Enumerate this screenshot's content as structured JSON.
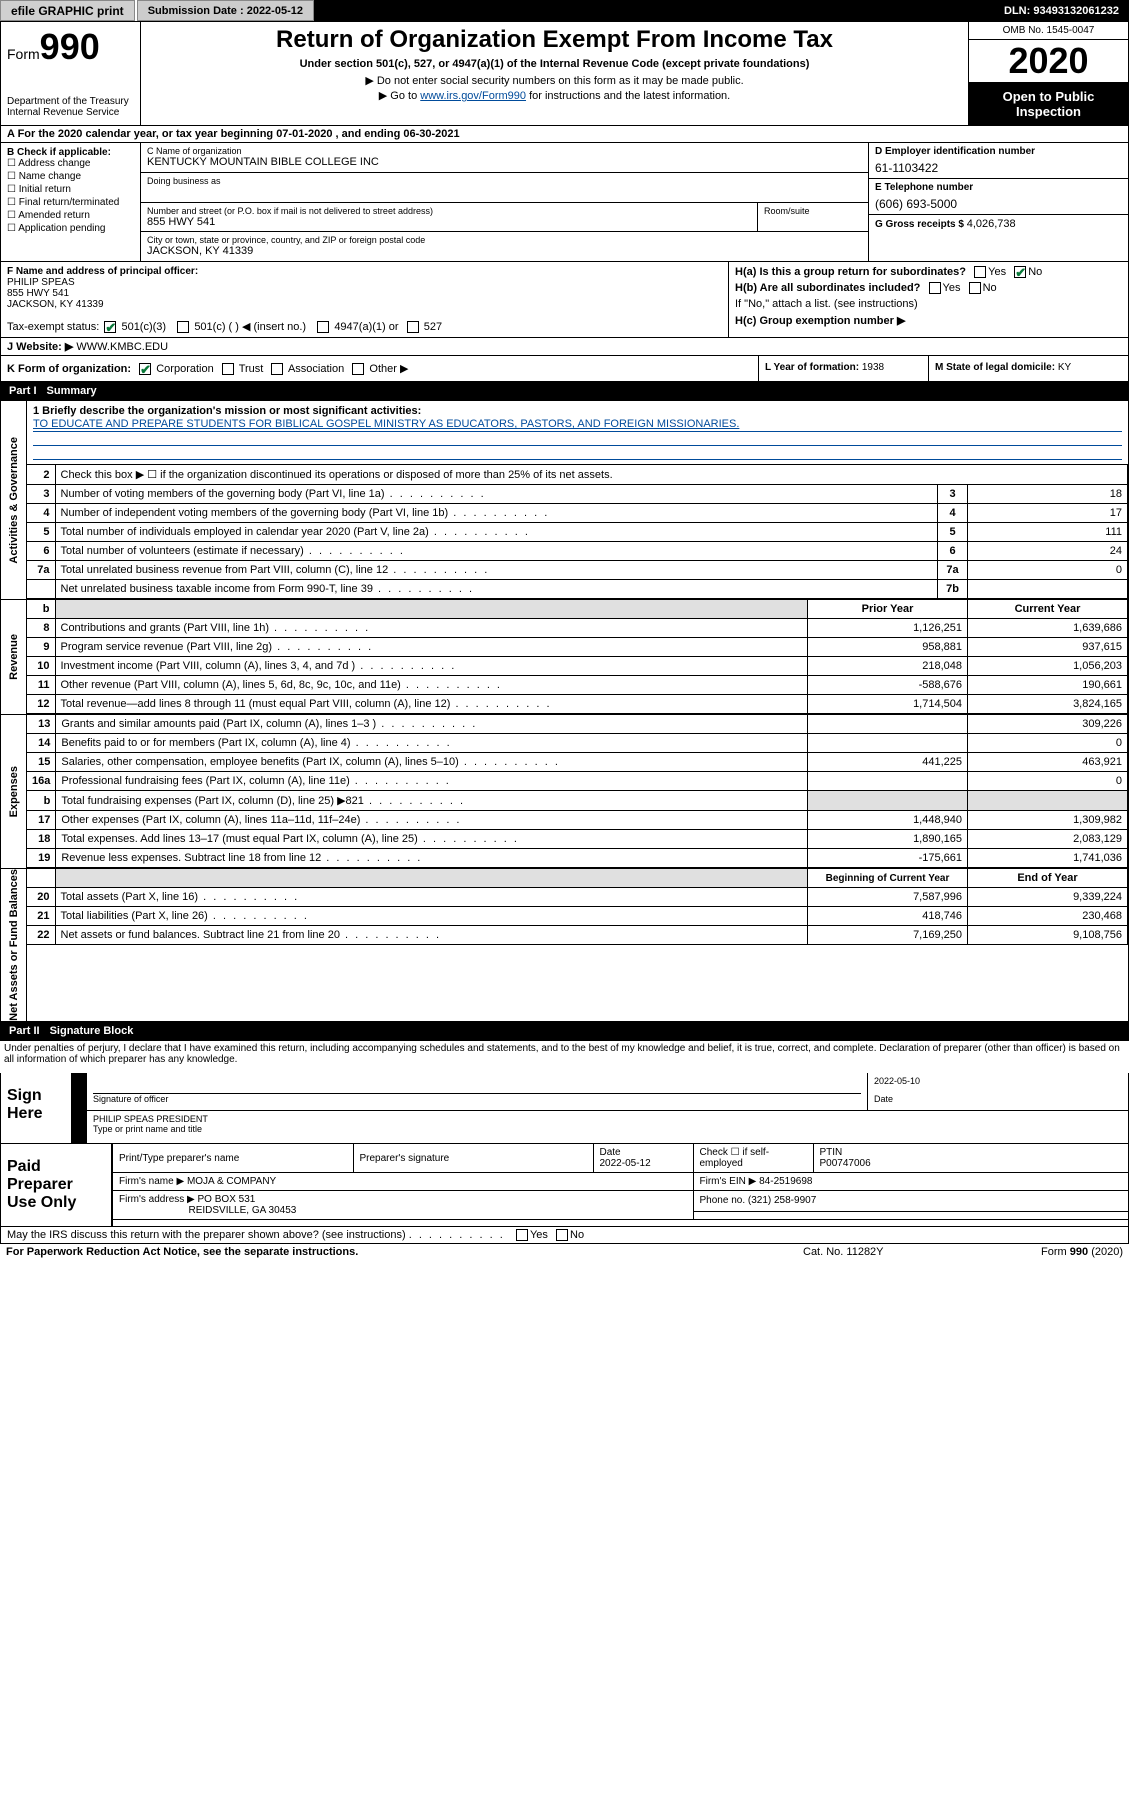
{
  "topbar": {
    "efile": "efile GRAPHIC print",
    "subdate_label": "Submission Date : 2022-05-12",
    "dln": "DLN: 93493132061232"
  },
  "header": {
    "form_prefix": "Form",
    "form_num": "990",
    "dept": "Department of the Treasury\nInternal Revenue Service",
    "title": "Return of Organization Exempt From Income Tax",
    "subtitle": "Under section 501(c), 527, or 4947(a)(1) of the Internal Revenue Code (except private foundations)",
    "note1": "▶ Do not enter social security numbers on this form as it may be made public.",
    "note2_pre": "▶ Go to ",
    "note2_link": "www.irs.gov/Form990",
    "note2_post": " for instructions and the latest information.",
    "omb": "OMB No. 1545-0047",
    "year": "2020",
    "inspect": "Open to Public Inspection"
  },
  "a_row": "A For the 2020 calendar year, or tax year beginning 07-01-2020    , and ending 06-30-2021",
  "entity": {
    "b_label": "B Check if applicable:",
    "b_opts": [
      "Address change",
      "Name change",
      "Initial return",
      "Final return/terminated",
      "Amended return",
      "Application pending"
    ],
    "c_label": "C Name of organization",
    "c_name": "KENTUCKY MOUNTAIN BIBLE COLLEGE INC",
    "dba_label": "Doing business as",
    "addr_label": "Number and street (or P.O. box if mail is not delivered to street address)",
    "room_label": "Room/suite",
    "addr": "855 HWY 541",
    "city_label": "City or town, state or province, country, and ZIP or foreign postal code",
    "city": "JACKSON, KY  41339",
    "d_label": "D Employer identification number",
    "d_val": "61-1103422",
    "e_label": "E Telephone number",
    "e_val": "(606) 693-5000",
    "g_label": "G Gross receipts $ ",
    "g_val": "4,026,738"
  },
  "fh": {
    "f_label": "F  Name and address of principal officer:",
    "f_name": "PHILIP SPEAS",
    "f_addr1": "855 HWY 541",
    "f_addr2": "JACKSON, KY  41339",
    "tax_label": "Tax-exempt status:",
    "tax1": "501(c)(3)",
    "tax2": "501(c) (  ) ◀ (insert no.)",
    "tax3": "4947(a)(1) or",
    "tax4": "527",
    "ha_label": "H(a)  Is this a group return for subordinates?",
    "hb_label": "H(b)  Are all subordinates included?",
    "hb_note": "If \"No,\" attach a list. (see instructions)",
    "hc_label": "H(c)  Group exemption number ▶",
    "yes": "Yes",
    "no": "No"
  },
  "jrow": {
    "j_label": "J      Website: ▶  ",
    "j_val": "WWW.KMBC.EDU"
  },
  "klm": {
    "k_label": "K Form of organization:",
    "k_opts": [
      "Corporation",
      "Trust",
      "Association",
      "Other ▶"
    ],
    "l_label": "L Year of formation: ",
    "l_val": "1938",
    "m_label": "M State of legal domicile: ",
    "m_val": "KY"
  },
  "part1": {
    "label": "Part I",
    "title": "Summary"
  },
  "part2": {
    "label": "Part II",
    "title": "Signature Block"
  },
  "summary": {
    "vlabels": [
      "Activities & Governance",
      "Revenue",
      "Expenses",
      "Net Assets or Fund Balances"
    ],
    "mission_label": "1  Briefly describe the organization's mission or most significant activities:",
    "mission": "TO EDUCATE AND PREPARE STUDENTS FOR BIBLICAL GOSPEL MINISTRY AS EDUCATORS, PASTORS, AND FOREIGN MISSIONARIES.",
    "line2": "Check this box ▶ ☐  if the organization discontinued its operations or disposed of more than 25% of its net assets.",
    "gov": [
      {
        "n": "3",
        "desc": "Number of voting members of the governing body (Part VI, line 1a)",
        "col": "3",
        "val": "18"
      },
      {
        "n": "4",
        "desc": "Number of independent voting members of the governing body (Part VI, line 1b)",
        "col": "4",
        "val": "17"
      },
      {
        "n": "5",
        "desc": "Total number of individuals employed in calendar year 2020 (Part V, line 2a)",
        "col": "5",
        "val": "111"
      },
      {
        "n": "6",
        "desc": "Total number of volunteers (estimate if necessary)",
        "col": "6",
        "val": "24"
      },
      {
        "n": "7a",
        "desc": "Total unrelated business revenue from Part VIII, column (C), line 12",
        "col": "7a",
        "val": "0"
      },
      {
        "n": "",
        "desc": "Net unrelated business taxable income from Form 990-T, line 39",
        "col": "7b",
        "val": ""
      }
    ],
    "hdr_b": "b",
    "hdr_prior": "Prior Year",
    "hdr_curr": "Current Year",
    "rev": [
      {
        "n": "8",
        "desc": "Contributions and grants (Part VIII, line 1h)",
        "p": "1,126,251",
        "c": "1,639,686"
      },
      {
        "n": "9",
        "desc": "Program service revenue (Part VIII, line 2g)",
        "p": "958,881",
        "c": "937,615"
      },
      {
        "n": "10",
        "desc": "Investment income (Part VIII, column (A), lines 3, 4, and 7d )",
        "p": "218,048",
        "c": "1,056,203"
      },
      {
        "n": "11",
        "desc": "Other revenue (Part VIII, column (A), lines 5, 6d, 8c, 9c, 10c, and 11e)",
        "p": "-588,676",
        "c": "190,661"
      },
      {
        "n": "12",
        "desc": "Total revenue—add lines 8 through 11 (must equal Part VIII, column (A), line 12)",
        "p": "1,714,504",
        "c": "3,824,165"
      }
    ],
    "exp": [
      {
        "n": "13",
        "desc": "Grants and similar amounts paid (Part IX, column (A), lines 1–3 )",
        "p": "",
        "c": "309,226"
      },
      {
        "n": "14",
        "desc": "Benefits paid to or for members (Part IX, column (A), line 4)",
        "p": "",
        "c": "0"
      },
      {
        "n": "15",
        "desc": "Salaries, other compensation, employee benefits (Part IX, column (A), lines 5–10)",
        "p": "441,225",
        "c": "463,921"
      },
      {
        "n": "16a",
        "desc": "Professional fundraising fees (Part IX, column (A), line 11e)",
        "p": "",
        "c": "0"
      },
      {
        "n": "b",
        "desc": "Total fundraising expenses (Part IX, column (D), line 25) ▶821",
        "p": "shade",
        "c": "shade"
      },
      {
        "n": "17",
        "desc": "Other expenses (Part IX, column (A), lines 11a–11d, 11f–24e)",
        "p": "1,448,940",
        "c": "1,309,982"
      },
      {
        "n": "18",
        "desc": "Total expenses. Add lines 13–17 (must equal Part IX, column (A), line 25)",
        "p": "1,890,165",
        "c": "2,083,129"
      },
      {
        "n": "19",
        "desc": "Revenue less expenses. Subtract line 18 from line 12",
        "p": "-175,661",
        "c": "1,741,036"
      }
    ],
    "hdr_beg": "Beginning of Current Year",
    "hdr_end": "End of Year",
    "net": [
      {
        "n": "20",
        "desc": "Total assets (Part X, line 16)",
        "p": "7,587,996",
        "c": "9,339,224"
      },
      {
        "n": "21",
        "desc": "Total liabilities (Part X, line 26)",
        "p": "418,746",
        "c": "230,468"
      },
      {
        "n": "22",
        "desc": "Net assets or fund balances. Subtract line 21 from line 20",
        "p": "7,169,250",
        "c": "9,108,756"
      }
    ]
  },
  "penalty": "Under penalties of perjury, I declare that I have examined this return, including accompanying schedules and statements, and to the best of my knowledge and belief, it is true, correct, and complete. Declaration of preparer (other than officer) is based on all information of which preparer has any knowledge.",
  "sign": {
    "here": "Sign Here",
    "sig_label": "Signature of officer",
    "date_label": "Date",
    "date": "2022-05-10",
    "name": "PHILIP SPEAS PRESIDENT",
    "name_label": "Type or print name and title"
  },
  "prep": {
    "label": "Paid Preparer Use Only",
    "c1": "Print/Type preparer's name",
    "c2": "Preparer's signature",
    "c3_label": "Date",
    "c3": "2022-05-12",
    "c4_label": "Check ☐ if self-employed",
    "c5_label": "PTIN",
    "c5": "P00747006",
    "firm_label": "Firm's name      ▶ ",
    "firm": "MOJA & COMPANY",
    "ein_label": "Firm's EIN ▶ ",
    "ein": "84-2519698",
    "addr_label": "Firm's address ▶ ",
    "addr1": "PO BOX 531",
    "addr2": "REIDSVILLE, GA  30453",
    "phone_label": "Phone no. ",
    "phone": "(321) 258-9907",
    "discuss": "May the IRS discuss this return with the preparer shown above? (see instructions)"
  },
  "footer": {
    "l": "For Paperwork Reduction Act Notice, see the separate instructions.",
    "m": "Cat. No. 11282Y",
    "r": "Form 990 (2020)"
  }
}
